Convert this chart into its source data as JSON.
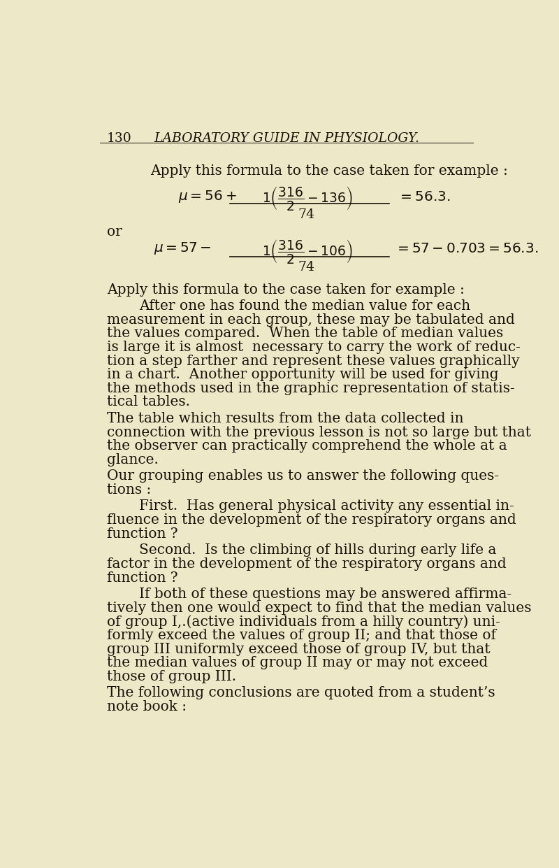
{
  "background_color": "#ede9c8",
  "page_number": "130",
  "header": "LABORATORY GUIDE IN PHYSIOLOGY.",
  "text_color": "#1a1209",
  "font_size_body": 14.0,
  "font_size_header": 13.5,
  "paragraphs": [
    {
      "indent": false,
      "lines": [
        "Apply this formula to the case taken for example :"
      ]
    },
    {
      "type": "formula1"
    },
    {
      "type": "or"
    },
    {
      "type": "formula2"
    },
    {
      "indent": true,
      "lines": [
        "After one has found the median value for each",
        "measurement in each group, these may be tabulated and",
        "the values compared.  When the table of median values",
        "is large it is almost  necessary to carry the work of reduc-",
        "tion a step farther and represent these values graphically",
        "in a chart.  Another opportunity will be used for giving",
        "the methods used in the graphic representation of statis-",
        "tical tables."
      ]
    },
    {
      "indent": false,
      "lines": [
        "The table which results from the data collected in",
        "connection with the previous lesson is not so large but that",
        "the observer can practically comprehend the whole at a",
        "glance."
      ]
    },
    {
      "indent": false,
      "lines": [
        "Our grouping enables us to answer the following ques-",
        "tions :"
      ]
    },
    {
      "indent": true,
      "lines": [
        "First.  Has general physical activity any essential in-",
        "fluence in the development of the respiratory organs and",
        "function ?"
      ]
    },
    {
      "indent": true,
      "lines": [
        "Second.  Is the climbing of hills during early life a",
        "factor in the development of the respiratory organs and",
        "function ?"
      ]
    },
    {
      "indent": true,
      "lines": [
        "If both of these questions may be answered affirma-",
        "tively then one would expect to find that the median values",
        "of group I,.(active individuals from a hilly country) uni-",
        "formly exceed the values of group II; and that those of",
        "group III uniformly exceed those of group IV, but that",
        "the median values of group II may or may not exceed",
        "those of group III."
      ]
    },
    {
      "indent": false,
      "lines": [
        "The following conclusions are quoted from a student’s",
        "note book :"
      ]
    }
  ]
}
